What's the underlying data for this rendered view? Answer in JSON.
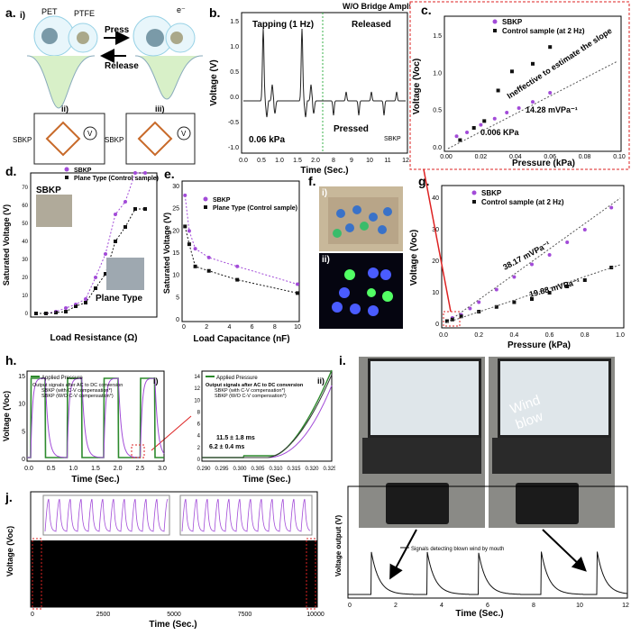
{
  "labels": {
    "a": "a.",
    "b": "b.",
    "c": "c.",
    "d": "d.",
    "e": "e.",
    "f": "f.",
    "g": "g.",
    "h": "h.",
    "i": "i.",
    "j": "j."
  },
  "panel_a": {
    "sub_i": "i)",
    "sub_ii": "ii)",
    "sub_iii": "iii)",
    "pet": "PET",
    "ptfe": "PTFE",
    "press": "Press",
    "release": "Release",
    "electron": "e⁻",
    "sbkp1": "SBKP",
    "sbkp2": "SBKP",
    "v1": "V",
    "v2": "V"
  },
  "panel_b": {
    "top_note": "W/O Bridge Amplifier",
    "tapping": "Tapping (1 Hz)",
    "released": "Released",
    "pressed": "Pressed",
    "pressure": "0.06 kPa",
    "legend": "SBKP",
    "xlabel": "Time (Sec.)",
    "ylabel": "Voltage (V)",
    "xticks": [
      "0.0",
      "0.5",
      "1.0",
      "1.5",
      "2.0",
      "8",
      "9",
      "10",
      "11",
      "12"
    ],
    "yticks": [
      "-1.0",
      "-0.5",
      "0.0",
      "0.5",
      "1.0",
      "1.5"
    ]
  },
  "panel_c": {
    "legend": [
      "SBKP",
      "Control sample (at 2 Hz)"
    ],
    "note": "Ineffective to estimate the slope",
    "slope": "14.28 mVPa⁻¹",
    "point": "0.006 KPa",
    "xlabel": "Pressure (kPa)",
    "ylabel": "Voltage (Voc)",
    "xticks": [
      "0.00",
      "0.02",
      "0.04",
      "0.06",
      "0.08",
      "0.10"
    ],
    "yticks": [
      "0.0",
      "0.5",
      "1.0",
      "1.5"
    ]
  },
  "panel_d": {
    "legend": [
      "SBKP",
      "Plane Type (Control sample)"
    ],
    "inset1": "SBKP",
    "inset2": "Plane Type",
    "xlabel": "Load Resistance (Ω)",
    "ylabel": "Saturated Voltage (V)",
    "yticks": [
      "0",
      "10",
      "20",
      "30",
      "40",
      "50",
      "60",
      "70"
    ]
  },
  "panel_e": {
    "legend": [
      "SBKP",
      "Plane Type (Control sample)"
    ],
    "xlabel": "Load Capacitance (nF)",
    "ylabel": "Saturated Voltage (V)",
    "xticks": [
      "0",
      "2",
      "4",
      "6",
      "8",
      "10"
    ],
    "yticks": [
      "0",
      "5",
      "10",
      "15",
      "20",
      "25",
      "30"
    ]
  },
  "panel_f": {
    "sub_i": "i)",
    "sub_ii": "ii)"
  },
  "panel_g": {
    "legend": [
      "SBKP",
      "Control sample (at 2 Hz)"
    ],
    "slope1": "38.17 mVPa⁻¹",
    "slope2": "19.88 mVPa⁻¹",
    "xlabel": "Pressure (kPa)",
    "ylabel": "Voltage (Voc)",
    "xticks": [
      "0.0",
      "0.2",
      "0.4",
      "0.6",
      "0.8",
      "1.0"
    ],
    "yticks": [
      "0",
      "10",
      "20",
      "30",
      "40"
    ]
  },
  "panel_h": {
    "sub_i": "i)",
    "sub_ii": "ii)",
    "legend_i": [
      "Applied Pressure",
      "Output signals after AC to DC conversion",
      "SBKP (with C-V compensation*)",
      "SBKP (W/O C-V compensation*)"
    ],
    "legend_ii": [
      "Applied Pressure",
      "Output signals after AC to DC conversion",
      "SBKP (with C-V compensation*)",
      "SBKP (W/O C-V compensation*)"
    ],
    "ann1": "11.5 ± 1.8 ms",
    "ann2": "6.2 ± 0.4 ms",
    "xlabel": "Time (Sec.)",
    "ylabel": "Voltage (Voc)",
    "xticks_i": [
      "0.0",
      "0.5",
      "1.0",
      "1.5",
      "2.0",
      "2.5",
      "3.0"
    ],
    "yticks_i": [
      "0",
      "5",
      "10",
      "15"
    ],
    "xticks_ii": [
      "0.290",
      "0.295",
      "0.300",
      "0.305",
      "0.310",
      "0.315",
      "0.320",
      "0.325"
    ],
    "yticks_ii": [
      "0",
      "2",
      "4",
      "6",
      "8",
      "10",
      "12",
      "14"
    ]
  },
  "panel_i": {
    "wind": "Wind blow",
    "legend": "Signals detecting blown wind by mouth",
    "xlabel": "Time (Sec.)",
    "ylabel": "Voltage output (V)",
    "xticks": [
      "0",
      "2",
      "4",
      "6",
      "8",
      "10",
      "12"
    ],
    "yticks": [
      "0.0",
      "0.1",
      "0.2",
      "0.3",
      "0.4",
      "0.5",
      "0.6",
      "0.7",
      "0.8",
      "0.9",
      "1.0",
      "1.1",
      "1.2"
    ]
  },
  "panel_j": {
    "xlabel": "Time (Sec.)",
    "ylabel": "Voltage (Voc)",
    "xticks": [
      "0",
      "2500",
      "5000",
      "7500",
      "10000"
    ],
    "yticks": [
      "0",
      "2",
      "4",
      "6",
      "8",
      "10",
      "12",
      "14"
    ]
  },
  "colors": {
    "sbkp": "#a24bd8",
    "control": "#111111",
    "green": "#2d8a2d",
    "red": "#d03030",
    "gradient": "#9a5ac8"
  }
}
